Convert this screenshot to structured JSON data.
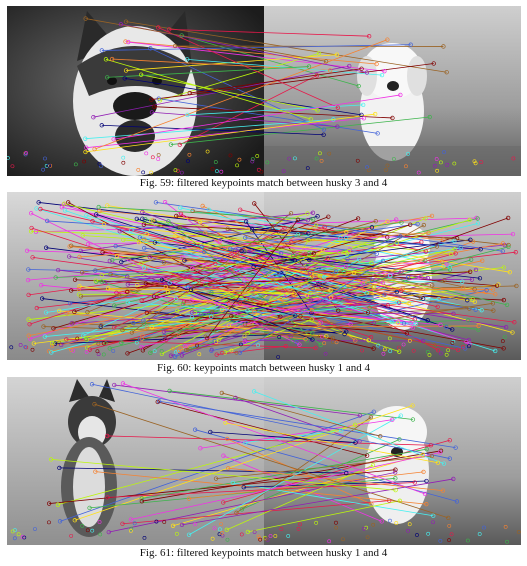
{
  "figures": [
    {
      "id": "fig59",
      "caption": "Fig. 59: filtered keypoints match between husky 3 and 4"
    },
    {
      "id": "fig60",
      "caption": "Fig. 60: keypoints match between husky 1 and 4"
    },
    {
      "id": "fig61",
      "caption": "Fig. 61: filtered keypoints match between husky 1 and 4"
    }
  ],
  "colors": {
    "page_background": "#ffffff",
    "caption_text": "#111111",
    "match_lines": [
      "#e6194b",
      "#3cb44b",
      "#4363d8",
      "#f58231",
      "#911eb4",
      "#46f0f0",
      "#f032e6",
      "#bcf60c",
      "#9a6324",
      "#800000",
      "#000075",
      "#ffe119"
    ]
  }
}
